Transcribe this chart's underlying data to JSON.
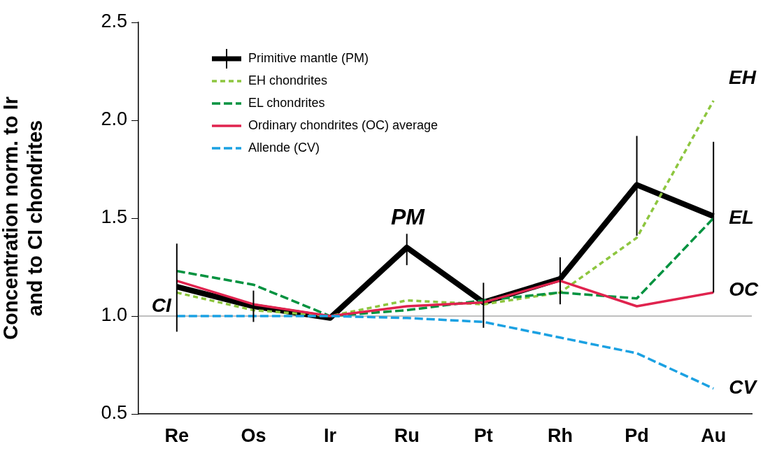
{
  "chart_data": {
    "type": "line",
    "ylabel": "Concentration norm. to Ir\nand to CI chondrites",
    "categories": [
      "Re",
      "Os",
      "Ir",
      "Ru",
      "Pt",
      "Rh",
      "Pd",
      "Au"
    ],
    "series": [
      {
        "name": "Primitive mantle (PM)",
        "color": "#000000",
        "line_style": "solid",
        "values": [
          1.15,
          1.05,
          0.99,
          1.35,
          1.07,
          1.19,
          1.67,
          1.51
        ],
        "errors": [
          [
            0.92,
            1.37
          ],
          [
            0.97,
            1.13
          ],
          null,
          [
            1.26,
            1.42
          ],
          [
            0.94,
            1.17
          ],
          [
            1.06,
            1.3
          ],
          [
            1.41,
            1.92
          ],
          [
            1.12,
            1.89
          ]
        ]
      },
      {
        "name": "EH chondrites",
        "color": "#8dc63f",
        "line_style": "dotted",
        "values": [
          1.12,
          1.03,
          1.0,
          1.08,
          1.06,
          1.12,
          1.4,
          2.1
        ]
      },
      {
        "name": "EL chondrites",
        "color": "#00923f",
        "line_style": "dashed",
        "values": [
          1.23,
          1.16,
          1.0,
          1.03,
          1.08,
          1.12,
          1.09,
          1.5
        ]
      },
      {
        "name": "Ordinary chondrites (OC) average",
        "color": "#e0234e",
        "line_style": "solid",
        "values": [
          1.18,
          1.06,
          1.0,
          1.05,
          1.07,
          1.18,
          1.05,
          1.12
        ]
      },
      {
        "name": "Allende (CV)",
        "color": "#1ba1e2",
        "line_style": "dashed",
        "values": [
          1.0,
          1.0,
          1.0,
          0.99,
          0.97,
          0.89,
          0.81,
          0.63
        ]
      }
    ],
    "ylim": [
      0.5,
      2.5
    ],
    "yticks": [
      0.5,
      {
        "value": 1,
        "label": "1.0"
      },
      1.5,
      {
        "value": 2,
        "label": "2.0"
      },
      2.5
    ],
    "ref_lines": [
      {
        "axis": "y",
        "value": 1,
        "color": "#808080"
      }
    ],
    "annotations": [
      {
        "text": "CI",
        "x": "Re",
        "y": 1.0
      },
      "PM",
      "EH",
      {
        "text": "EL",
        "x": "Au",
        "y": 1.5
      },
      {
        "text": "OC",
        "x": "Au",
        "y": 1.13
      },
      {
        "text": "CV",
        "x": "Au",
        "y": 0.63
      }
    ],
    "legend": "top left",
    "grid": false,
    "marker": "none"
  }
}
